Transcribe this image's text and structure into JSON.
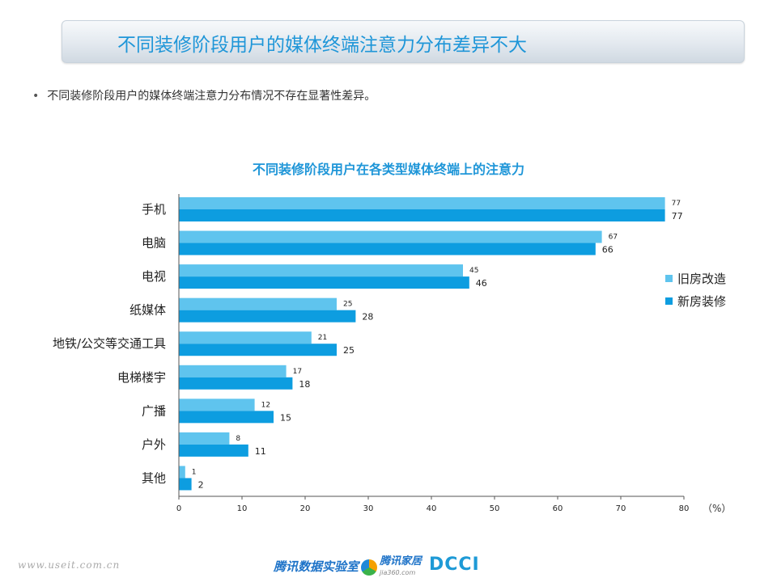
{
  "header": {
    "title": "不同装修阶段用户的媒体终端注意力分布差异不大"
  },
  "bullet": {
    "symbol": "•",
    "text": "不同装修阶段用户的媒体终端注意力分布情况不存在显著性差异。"
  },
  "footer": {
    "url": "www.useit.com.cn",
    "lab": "腾讯数据实验室",
    "logo2_main": "腾讯家居",
    "logo2_sub": "jia360.com",
    "logo3": "DCCI"
  },
  "chart_data": {
    "type": "bar",
    "orientation": "horizontal",
    "title": "不同装修阶段用户在各类型媒体终端上的注意力",
    "unit": "（%）",
    "categories": [
      "手机",
      "电脑",
      "电视",
      "纸媒体",
      "地铁/公交等交通工具",
      "电梯楼宇",
      "广播",
      "户外",
      "其他"
    ],
    "series": [
      {
        "name": "旧房改造",
        "color": "#5fc4ee",
        "values": [
          77,
          67,
          45,
          25,
          21,
          17,
          12,
          8,
          1
        ]
      },
      {
        "name": "新房装修",
        "color": "#0d9de0",
        "values": [
          77,
          66,
          46,
          28,
          25,
          18,
          15,
          11,
          2
        ]
      }
    ],
    "xlim": [
      0,
      80
    ],
    "xticks": [
      0,
      10,
      20,
      30,
      40,
      50,
      60,
      70,
      80
    ],
    "legend_position": "right",
    "grid": false
  }
}
